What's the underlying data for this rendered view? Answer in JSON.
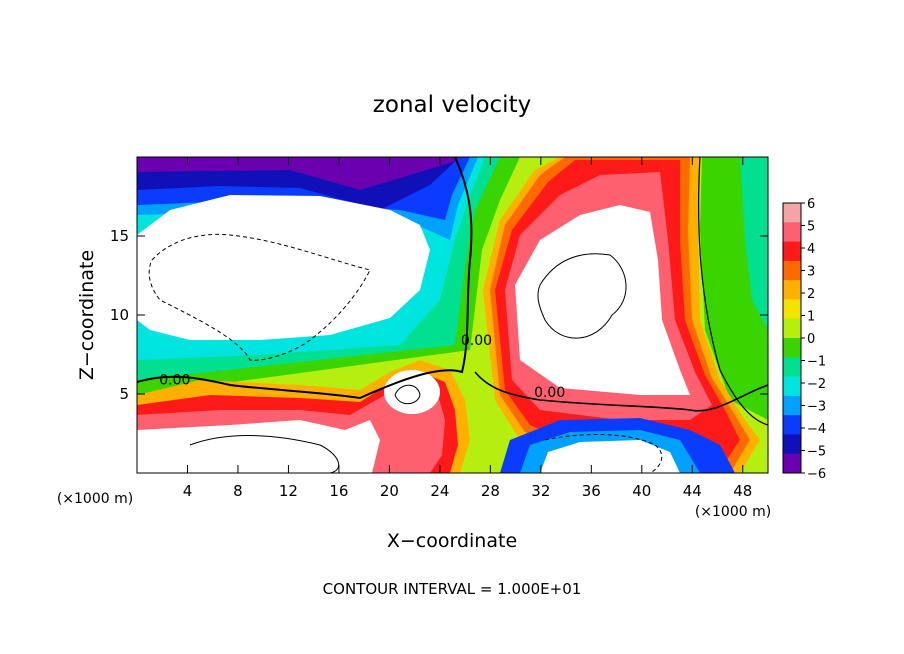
{
  "chart_data": {
    "type": "heatmap",
    "title": "zonal velocity",
    "xlabel": "X−coordinate",
    "ylabel": "Z−coordinate",
    "x_unit_left": "(×1000 m)",
    "x_unit_right": "(×1000 m)",
    "xlim": [
      0,
      50
    ],
    "ylim": [
      0,
      20
    ],
    "x_ticks": [
      4,
      8,
      12,
      16,
      20,
      24,
      28,
      32,
      36,
      40,
      44,
      48
    ],
    "y_ticks": [
      5,
      10,
      15
    ],
    "contour_note": "CONTOUR INTERVAL = 1.000E+01",
    "contour_labels": [
      {
        "text": "0.00",
        "x": 3.0,
        "y": 5.6
      },
      {
        "text": "0.00",
        "x": 26.9,
        "y": 8.1
      },
      {
        "text": "0.00",
        "x": 32.7,
        "y": 4.8
      }
    ],
    "colorbar": {
      "levels": [
        6,
        5,
        4,
        3,
        2,
        1,
        0,
        -1,
        -2,
        -3,
        -4,
        -5,
        -6
      ],
      "labels": [
        "6",
        "5",
        "4",
        "3",
        "2",
        "1",
        "0",
        "−1",
        "−2",
        "−3",
        "−4",
        "−5",
        "−6"
      ],
      "colors": [
        "#f4a4a4",
        "#ff6070",
        "#ff1a1a",
        "#ff6a00",
        "#ffb000",
        "#f2e400",
        "#b6ee10",
        "#3ad400",
        "#00e090",
        "#00e4e0",
        "#00a0ff",
        "#0a3cff",
        "#1010b8",
        "#6a00b0"
      ]
    }
  }
}
